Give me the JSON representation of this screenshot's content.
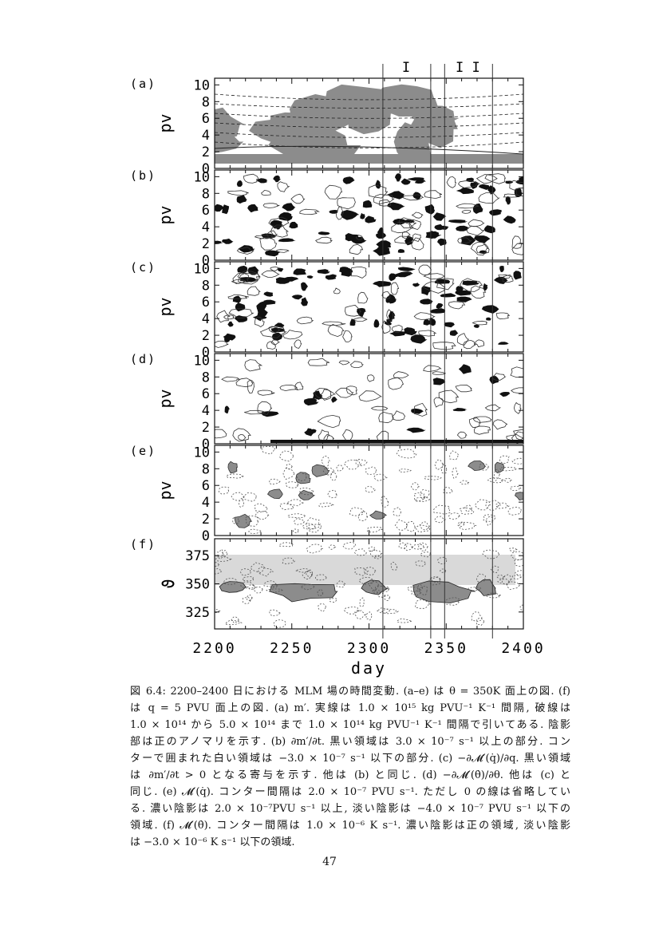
{
  "chart_data": {
    "type": "heatmap",
    "xlabel": "day",
    "xlim": [
      2200,
      2400
    ],
    "xticks": [
      "2200",
      "2250",
      "2300",
      "2350",
      "2400"
    ],
    "marked_days": [
      2309,
      2340,
      2349,
      2380
    ],
    "period_labels": [
      {
        "text": "I",
        "day": 2324
      },
      {
        "text": "I I",
        "day": 2364
      }
    ],
    "panels": [
      {
        "label": "(a)",
        "ylabel": "pv",
        "ylim": [
          0,
          10.8
        ],
        "yticks": [
          "0",
          "2",
          "4",
          "6",
          "8",
          "10"
        ]
      },
      {
        "label": "(b)",
        "ylabel": "pv",
        "ylim": [
          0,
          10.8
        ],
        "yticks": [
          "0",
          "2",
          "4",
          "6",
          "8",
          "10"
        ]
      },
      {
        "label": "(c)",
        "ylabel": "pv",
        "ylim": [
          0,
          10.8
        ],
        "yticks": [
          "0",
          "2",
          "4",
          "6",
          "8",
          "10"
        ]
      },
      {
        "label": "(d)",
        "ylabel": "pv",
        "ylim": [
          0,
          10.8
        ],
        "yticks": [
          "0",
          "2",
          "4",
          "6",
          "8",
          "10"
        ]
      },
      {
        "label": "(e)",
        "ylabel": "pv",
        "ylim": [
          0,
          10.8
        ],
        "yticks": [
          "0",
          "2",
          "4",
          "6",
          "8",
          "10"
        ]
      },
      {
        "label": "(f)",
        "ylabel": "ϑ",
        "ylim": [
          310,
          390
        ],
        "yticks": [
          "325",
          "350",
          "375"
        ]
      }
    ],
    "colors": {
      "dark_shade": "#8c8c8c",
      "light_shade": "#d9d9d9",
      "black": "#111111"
    }
  },
  "caption": {
    "lines": [
      "図 6.4: 2200–2400 日における MLM 場の時間変動. (a–e) は θ = 350K 面上の図. (f)",
      "は q = 5 PVU 面上の図. (a) m′. 実線は 1.0 × 10¹⁵ kg PVU⁻¹ K⁻¹ 間隔, 破線は",
      "1.0 × 10¹⁴ から 5.0 × 10¹⁴ まで 1.0 × 10¹⁴ kg PVU⁻¹ K⁻¹ 間隔で引いてある. 陰影",
      "部は正のアノマリを示す. (b) ∂m′/∂t. 黒い領域は 3.0 × 10⁻⁷ s⁻¹ 以上の部分. コン",
      "ターで囲まれた白い領域は −3.0 × 10⁻⁷ s⁻¹ 以下の部分. (c) −∂𝓜′(q̇)/∂q. 黒い領域",
      "は ∂m′/∂t > 0 となる寄与を示す. 他は (b) と同じ. (d) −∂𝓜′(θ̇)/∂θ. 他は (c) と",
      "同じ. (e) 𝓜′(q̇). コンター間隔は 2.0 × 10⁻⁷ PVU s⁻¹. ただし 0 の線は省略してい",
      "る. 濃い陰影は 2.0 × 10⁻⁷PVU s⁻¹ 以上, 淡い陰影は −4.0 × 10⁻⁷ PVU s⁻¹ 以下の",
      "領域. (f) 𝓜′(θ̇). コンター間隔は 1.0 × 10⁻⁶ K s⁻¹. 濃い陰影は正の領域, 淡い陰影",
      "は −3.0 × 10⁻⁶ K s⁻¹ 以下の領域."
    ]
  },
  "page_number": "47"
}
